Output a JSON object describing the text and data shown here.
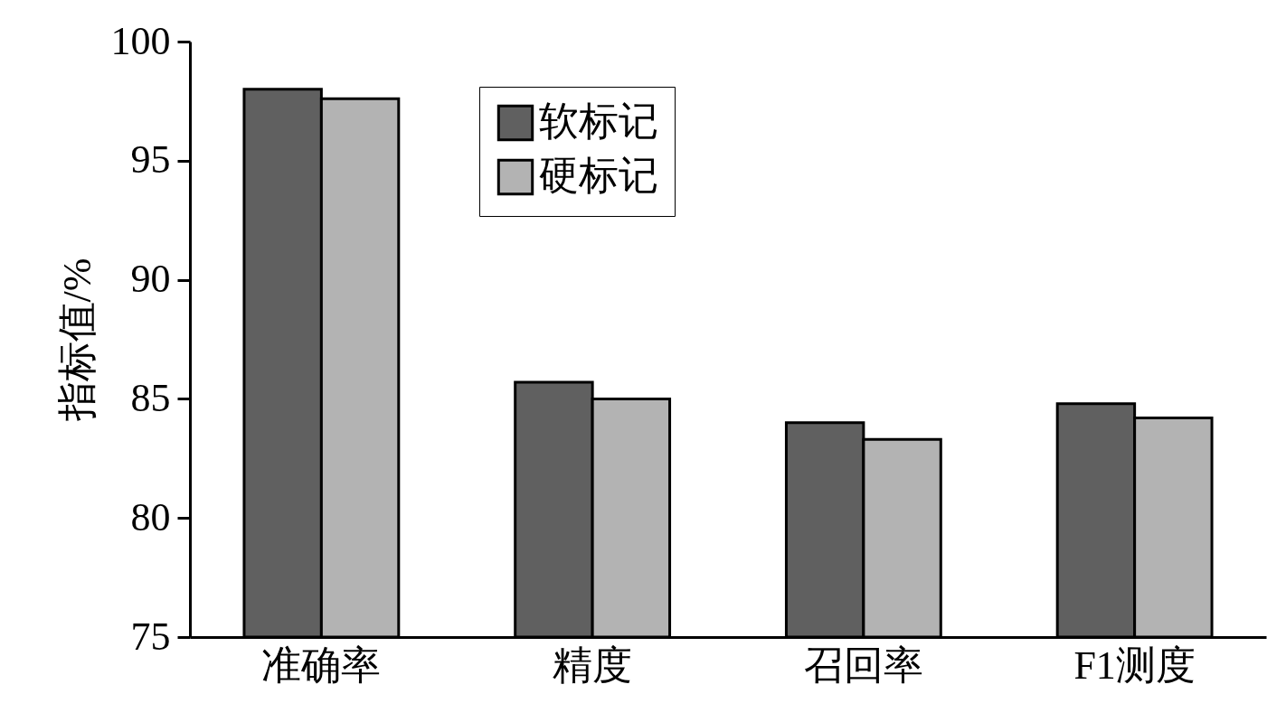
{
  "chart_data": {
    "type": "bar",
    "ylabel": "指标值/%",
    "categories": [
      "准确率",
      "精度",
      "召回率",
      "F1测度"
    ],
    "series": [
      {
        "name": "软标记",
        "color": "#606060",
        "values": [
          98.0,
          85.7,
          84.0,
          84.8
        ]
      },
      {
        "name": "硬标记",
        "color": "#b3b3b3",
        "values": [
          97.6,
          85.0,
          83.3,
          84.2
        ]
      }
    ],
    "ylim": [
      75,
      100
    ],
    "yticks": [
      75,
      80,
      85,
      90,
      95,
      100
    ],
    "grid": false,
    "legend": "top"
  }
}
